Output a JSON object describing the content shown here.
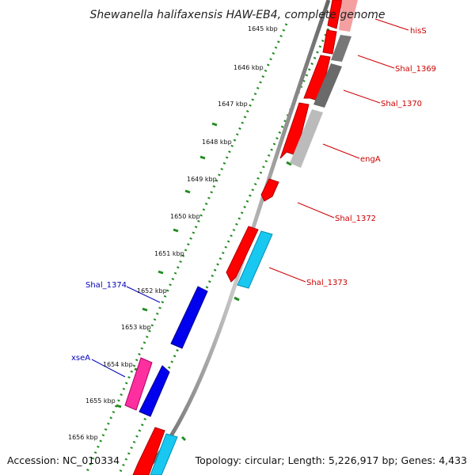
{
  "title": "Shewanella halifaxensis HAW-EB4, complete genome",
  "footer": {
    "accession": "Accession: NC_010334",
    "summary": "Topology: circular; Length: 5,226,917 bp; Genes: 4,433"
  },
  "ticks": [
    {
      "label": "1645 kbp"
    },
    {
      "label": "1646 kbp"
    },
    {
      "label": "1647 kbp"
    },
    {
      "label": "1648 kbp"
    },
    {
      "label": "1649 kbp"
    },
    {
      "label": "1650 kbp"
    },
    {
      "label": "1651 kbp"
    },
    {
      "label": "1652 kbp"
    },
    {
      "label": "1653 kbp"
    },
    {
      "label": "1654 kbp"
    },
    {
      "label": "1655 kbp"
    },
    {
      "label": "1656 kbp"
    }
  ],
  "gene_labels": [
    {
      "text": "hisS",
      "color": "#cc0000"
    },
    {
      "text": "Shal_1369",
      "color": "#cc0000"
    },
    {
      "text": "Shal_1370",
      "color": "#cc0000"
    },
    {
      "text": "engA",
      "color": "#cc0000"
    },
    {
      "text": "Shal_1372",
      "color": "#cc0000"
    },
    {
      "text": "Shal_1373",
      "color": "#cc0000"
    },
    {
      "text": "Shal_1374",
      "color": "#0000bb"
    },
    {
      "text": "xseA",
      "color": "#0000bb"
    }
  ],
  "colors": {
    "forward_cds": "#ff0000",
    "reverse_cds": "#0000ee",
    "rna": "#ff2fa0",
    "cog_cyan": "#19c8f0",
    "cog_grey": "#777777",
    "cog_light_grey": "#bbbbbb",
    "cog_pink": "#f4a0a0",
    "backbone": "#8a8a8a",
    "gc_ring": "#228b22"
  }
}
